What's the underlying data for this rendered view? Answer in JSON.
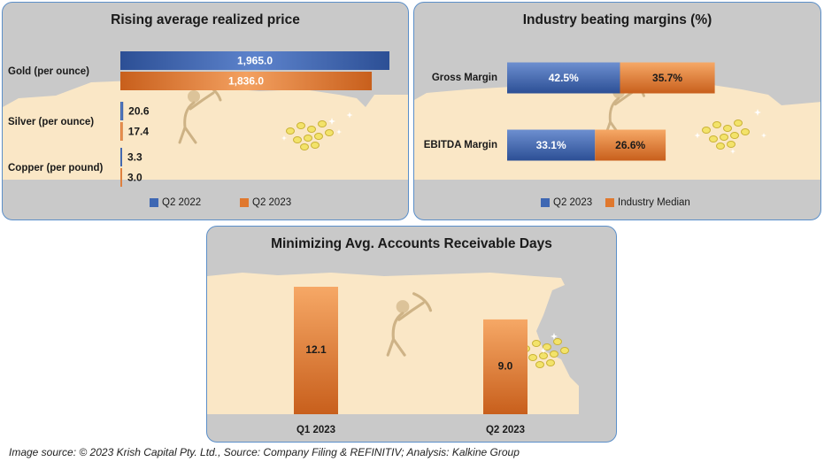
{
  "colors": {
    "panel_bg": "#c9c9c9",
    "scene": "#fde9c6",
    "blue": "#3e67b3",
    "orange": "#e0782e",
    "panel_border": "#5b8fc9"
  },
  "icons": [
    "miner-with-pickaxe-icon",
    "gold-nuggets-icon",
    "sparkle-icon"
  ],
  "source": "Image source: © 2023 Krish Capital Pty. Ltd., Source: Company Filing & REFINITIV; Analysis: Kalkine Group",
  "chart_data": [
    {
      "type": "bar",
      "orientation": "horizontal",
      "title": "Rising average realized price",
      "categories": [
        "Gold (per ounce)",
        "Silver (per ounce)",
        "Copper (per pound)"
      ],
      "series": [
        {
          "name": "Q2 2022",
          "values": [
            1965.0,
            20.6,
            3.3
          ],
          "labels": [
            "1,965.0",
            "20.6",
            "3.3"
          ]
        },
        {
          "name": "Q2 2023",
          "values": [
            1836.0,
            17.4,
            3.0
          ],
          "labels": [
            "1,836.0",
            "17.4",
            "3.0"
          ]
        }
      ],
      "legend": "bottom",
      "grid": false
    },
    {
      "type": "bar",
      "orientation": "horizontal",
      "stacked": true,
      "title": "Industry beating margins (%)",
      "categories": [
        "Gross Margin",
        "EBITDA Margin"
      ],
      "series": [
        {
          "name": "Q2 2023",
          "values": [
            42.5,
            33.1
          ],
          "labels": [
            "42.5%",
            "33.1%"
          ]
        },
        {
          "name": "Industry Median",
          "values": [
            35.7,
            26.6
          ],
          "labels": [
            "35.7%",
            "26.6%"
          ]
        }
      ],
      "legend": "bottom",
      "grid": false
    },
    {
      "type": "bar",
      "orientation": "vertical",
      "title": "Minimizing Avg. Accounts Receivable Days",
      "categories": [
        "Q1 2023",
        "Q2 2023"
      ],
      "values": [
        12.1,
        9.0
      ],
      "labels": [
        "12.1",
        "9.0"
      ],
      "legend": "none",
      "grid": false
    }
  ]
}
